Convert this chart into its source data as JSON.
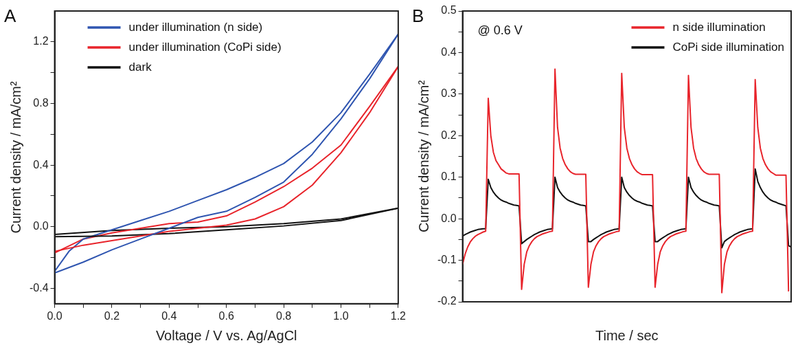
{
  "chart_data": [
    {
      "type": "line",
      "title": "A",
      "xlabel": "Voltage / V vs. Ag/AgCl",
      "ylabel": "Current density / mA/cm²",
      "xlim": [
        0,
        1.2
      ],
      "ylim": [
        -0.5,
        1.4
      ],
      "xticks": [
        {
          "value": 0,
          "label": "0.0"
        },
        {
          "value": 0.1,
          "label": null
        },
        0.2,
        {
          "value": 0.3,
          "label": null
        },
        0.4,
        {
          "value": 0.5,
          "label": null
        },
        0.6,
        {
          "value": 0.7,
          "label": null
        },
        0.8,
        {
          "value": 0.9,
          "label": null
        },
        {
          "value": 1,
          "label": "1.0"
        },
        {
          "value": 1.1,
          "label": null
        },
        1.2
      ],
      "yticks": [
        -0.4,
        {
          "value": -0.2,
          "label": null
        },
        {
          "value": 0,
          "label": "0.0"
        },
        {
          "value": 0.2,
          "label": null
        },
        0.4,
        {
          "value": 0.6,
          "label": null
        },
        0.8,
        {
          "value": 1,
          "label": null
        },
        1.2
      ],
      "legend": "top left",
      "series": [
        {
          "name": "under illumination (n side)",
          "color": "#2f55b0",
          "x": [
            0,
            0.1,
            0.2,
            0.3,
            0.4,
            0.5,
            0.6,
            0.7,
            0.8,
            0.9,
            1.0,
            1.1,
            1.2
          ],
          "values": [
            -0.3,
            -0.23,
            -0.15,
            -0.08,
            -0.01,
            0.06,
            0.1,
            0.19,
            0.29,
            0.47,
            0.7,
            0.96,
            1.25
          ]
        },
        {
          "name": "under illumination (CoPi side)",
          "color": "#e8242b",
          "x": [
            0,
            0.1,
            0.2,
            0.3,
            0.4,
            0.5,
            0.6,
            0.7,
            0.8,
            0.9,
            1.0,
            1.1,
            1.2
          ],
          "values": [
            -0.16,
            -0.12,
            -0.09,
            -0.06,
            -0.03,
            -0.01,
            0.01,
            0.05,
            0.13,
            0.27,
            0.48,
            0.74,
            1.04
          ]
        },
        {
          "name": "dark",
          "color": "#111111",
          "x": [
            0,
            0.2,
            0.4,
            0.6,
            0.8,
            1.0,
            1.2
          ],
          "values": [
            -0.065,
            -0.06,
            -0.045,
            -0.02,
            0.005,
            0.04,
            0.12
          ]
        },
        {
          "color": "#2f55b0",
          "x": [
            0,
            0.05,
            0.1,
            0.2,
            0.3,
            0.4,
            0.5,
            0.6,
            0.7,
            0.8,
            0.9,
            1.0,
            1.1,
            1.2
          ],
          "values": [
            -0.29,
            -0.16,
            -0.08,
            -0.02,
            0.04,
            0.1,
            0.17,
            0.24,
            0.32,
            0.41,
            0.55,
            0.74,
            0.99,
            1.25
          ]
        },
        {
          "color": "#e8242b",
          "x": [
            0,
            0.1,
            0.2,
            0.3,
            0.4,
            0.5,
            0.6,
            0.7,
            0.8,
            0.9,
            1.0,
            1.1,
            1.2
          ],
          "values": [
            -0.17,
            -0.08,
            -0.04,
            -0.01,
            0.02,
            0.03,
            0.07,
            0.16,
            0.26,
            0.38,
            0.53,
            0.78,
            1.04
          ]
        },
        {
          "color": "#111111",
          "x": [
            0,
            0.2,
            0.4,
            0.6,
            0.8,
            1.0,
            1.2
          ],
          "values": [
            -0.05,
            -0.025,
            -0.01,
            0,
            0.02,
            0.05,
            0.12
          ]
        }
      ]
    },
    {
      "type": "line",
      "title": "B",
      "xlabel": "Time / sec",
      "ylabel": "Current density / mA/cm²",
      "ylim": [
        -0.2,
        0.5
      ],
      "yticks": [
        -0.2,
        {
          "value": -0.15,
          "label": null
        },
        -0.1,
        {
          "value": -0.05,
          "label": null
        },
        {
          "value": 0,
          "label": "0.0"
        },
        {
          "value": 0.05,
          "label": null
        },
        0.1,
        {
          "value": 0.15,
          "label": null
        },
        0.2,
        {
          "value": 0.25,
          "label": null
        },
        0.3,
        {
          "value": 0.35,
          "label": null
        },
        0.4,
        {
          "value": 0.45,
          "label": null
        },
        0.5
      ],
      "tick_labels": "y",
      "legend": "top right",
      "annotations": [
        "@ 0.6 V"
      ],
      "categories": [
        null,
        null,
        null,
        null,
        null,
        null,
        null,
        null,
        null,
        null,
        null,
        null,
        null,
        null,
        null,
        null,
        null,
        null,
        null,
        null,
        null,
        null,
        null,
        null,
        null,
        null,
        null,
        null,
        null,
        null,
        null,
        null,
        null,
        null,
        null,
        null,
        null,
        null,
        null,
        null,
        null,
        null,
        null,
        null,
        null,
        null,
        null,
        null,
        null,
        null,
        null,
        null,
        null,
        null,
        null,
        null,
        null,
        null,
        null,
        null,
        null,
        null,
        null,
        null,
        null,
        null,
        null,
        null,
        null,
        null,
        null,
        null,
        null,
        null,
        null,
        null,
        null,
        null,
        null,
        null,
        null,
        null,
        null,
        null,
        null,
        null,
        null,
        null,
        null,
        null,
        null,
        null,
        null,
        null,
        null,
        null,
        null,
        null,
        null,
        null,
        null,
        null,
        null,
        null,
        null,
        null,
        null,
        null,
        null,
        null,
        null,
        null,
        null,
        null,
        null,
        null,
        null,
        null,
        null,
        null,
        null,
        null,
        null,
        null,
        null,
        null,
        null,
        null,
        null
      ],
      "series": [
        {
          "name": "n side illumination",
          "color": "#e8242b",
          "values": [
            -0.11,
            -0.085,
            -0.068,
            -0.056,
            -0.048,
            -0.042,
            -0.038,
            -0.035,
            -0.032,
            -0.03,
            0.29,
            0.2,
            0.16,
            0.14,
            0.13,
            0.12,
            0.115,
            0.11,
            0.108,
            0.108,
            0.108,
            0.108,
            0.108,
            -0.17,
            -0.11,
            -0.08,
            -0.065,
            -0.055,
            -0.048,
            -0.043,
            -0.04,
            -0.037,
            -0.035,
            -0.033,
            -0.031,
            -0.03,
            0.36,
            0.22,
            0.17,
            0.145,
            0.13,
            0.12,
            0.113,
            0.109,
            0.107,
            0.107,
            0.107,
            0.107,
            0.107,
            -0.165,
            -0.11,
            -0.08,
            -0.065,
            -0.055,
            -0.048,
            -0.043,
            -0.04,
            -0.037,
            -0.035,
            -0.033,
            -0.031,
            -0.03,
            0.35,
            0.22,
            0.17,
            0.145,
            0.13,
            0.12,
            0.113,
            0.109,
            0.106,
            0.106,
            0.106,
            0.106,
            0.106,
            -0.165,
            -0.11,
            -0.08,
            -0.065,
            -0.055,
            -0.048,
            -0.043,
            -0.04,
            -0.037,
            -0.035,
            -0.033,
            -0.031,
            -0.03,
            0.345,
            0.22,
            0.17,
            0.145,
            0.13,
            0.12,
            0.113,
            0.109,
            0.107,
            0.107,
            0.107,
            0.107,
            0.107,
            -0.178,
            -0.11,
            -0.08,
            -0.065,
            -0.055,
            -0.048,
            -0.043,
            -0.04,
            -0.037,
            -0.035,
            -0.033,
            -0.031,
            -0.03,
            0.335,
            0.22,
            0.17,
            0.145,
            0.13,
            0.12,
            0.113,
            0.109,
            0.105,
            0.105,
            0.105,
            0.105,
            0.105,
            -0.175,
            null
          ]
        },
        {
          "name": "CoPi side illumination",
          "color": "#111111",
          "values": [
            -0.042,
            -0.038,
            -0.035,
            -0.032,
            -0.03,
            -0.028,
            -0.026,
            -0.025,
            -0.024,
            -0.024,
            0.095,
            0.075,
            0.064,
            0.056,
            0.05,
            0.045,
            0.042,
            0.04,
            0.037,
            0.035,
            0.033,
            0.032,
            0.031,
            -0.06,
            -0.055,
            -0.05,
            -0.046,
            -0.042,
            -0.038,
            -0.035,
            -0.032,
            -0.03,
            -0.028,
            -0.026,
            -0.025,
            -0.024,
            0.1,
            0.075,
            0.064,
            0.056,
            0.05,
            0.045,
            0.042,
            0.04,
            0.037,
            0.035,
            0.033,
            0.032,
            0.031,
            -0.055,
            -0.055,
            -0.05,
            -0.046,
            -0.042,
            -0.038,
            -0.035,
            -0.032,
            -0.03,
            -0.028,
            -0.026,
            -0.025,
            -0.024,
            0.1,
            0.075,
            0.064,
            0.056,
            0.05,
            0.045,
            0.042,
            0.04,
            0.037,
            0.035,
            0.033,
            0.032,
            0.031,
            -0.055,
            -0.055,
            -0.05,
            -0.046,
            -0.042,
            -0.038,
            -0.035,
            -0.032,
            -0.03,
            -0.028,
            -0.026,
            -0.025,
            -0.024,
            0.1,
            0.075,
            0.064,
            0.056,
            0.05,
            0.045,
            0.042,
            0.04,
            0.037,
            0.035,
            0.033,
            0.032,
            0.031,
            -0.07,
            -0.055,
            -0.05,
            -0.046,
            -0.042,
            -0.038,
            -0.035,
            -0.032,
            -0.03,
            -0.028,
            -0.026,
            -0.025,
            -0.024,
            0.12,
            0.09,
            0.075,
            0.064,
            0.056,
            0.05,
            0.045,
            0.042,
            0.04,
            0.037,
            0.035,
            0.033,
            0.031,
            -0.065,
            -0.068
          ]
        }
      ]
    }
  ]
}
